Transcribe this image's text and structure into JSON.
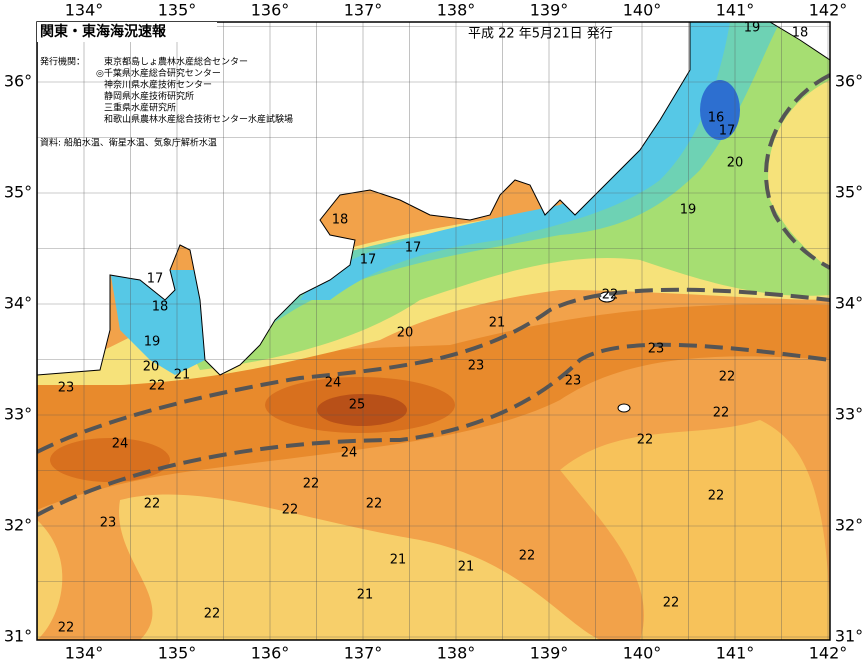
{
  "header": {
    "title": "関東・東海海況速報",
    "date": "平成 22 年5月21日 発行",
    "issuers_label": "発行機関：",
    "issuers": [
      "東京都島しょ農林水産総合センター",
      "◎千葉県水産総合研究センター",
      "神奈川県水産技術センター",
      "静岡県水産技術研究所",
      "三重県水産研究所",
      "和歌山県農林水産総合技術センター水産試験場"
    ],
    "sources": "資料: 船舶水温、衛星水温、気象庁解析水温"
  },
  "longitude_labels": [
    "134°",
    "135°",
    "136°",
    "137°",
    "138°",
    "139°",
    "140°",
    "141°",
    "142°"
  ],
  "latitude_labels": [
    "36°",
    "35°",
    "34°",
    "33°",
    "32°",
    "31°"
  ],
  "contour_labels": [
    19,
    18,
    16,
    17,
    20,
    19,
    18,
    17,
    17,
    17,
    18,
    19,
    20,
    21,
    22,
    20,
    21,
    22,
    23,
    24,
    25,
    23,
    23,
    23,
    22,
    22,
    22,
    24,
    24,
    22,
    22,
    22,
    22,
    23,
    22,
    22,
    21,
    21,
    21,
    22,
    22,
    22
  ]
}
